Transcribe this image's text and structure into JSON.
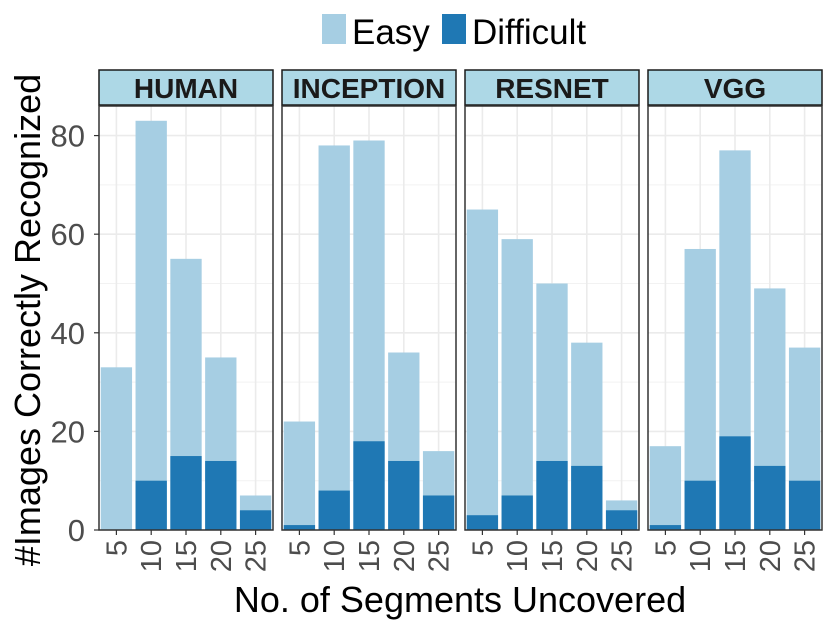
{
  "chart_data": {
    "type": "bar",
    "stacked": "overlaid",
    "title": "",
    "xlabel": "No. of Segments Uncovered",
    "ylabel": "#Images Correctly Recognized",
    "ylim": [
      0,
      86
    ],
    "yticks": [
      0,
      20,
      40,
      60,
      80
    ],
    "categories": [
      "5",
      "10",
      "15",
      "20",
      "25"
    ],
    "legend": {
      "position": "top",
      "entries": [
        {
          "name": "Easy",
          "color": "#a6cee3"
        },
        {
          "name": "Difficult",
          "color": "#1f78b4"
        }
      ]
    },
    "grid": true,
    "facets": [
      {
        "label": "HUMAN",
        "easy": [
          33,
          83,
          55,
          35,
          7
        ],
        "difficult": [
          0,
          10,
          15,
          14,
          4
        ]
      },
      {
        "label": "INCEPTION",
        "easy": [
          22,
          78,
          79,
          36,
          16
        ],
        "difficult": [
          1,
          8,
          18,
          14,
          7
        ]
      },
      {
        "label": "RESNET",
        "easy": [
          65,
          59,
          50,
          38,
          6
        ],
        "difficult": [
          3,
          7,
          14,
          13,
          4
        ]
      },
      {
        "label": "VGG",
        "easy": [
          17,
          57,
          77,
          49,
          37
        ],
        "difficult": [
          1,
          10,
          19,
          13,
          10
        ]
      }
    ]
  }
}
